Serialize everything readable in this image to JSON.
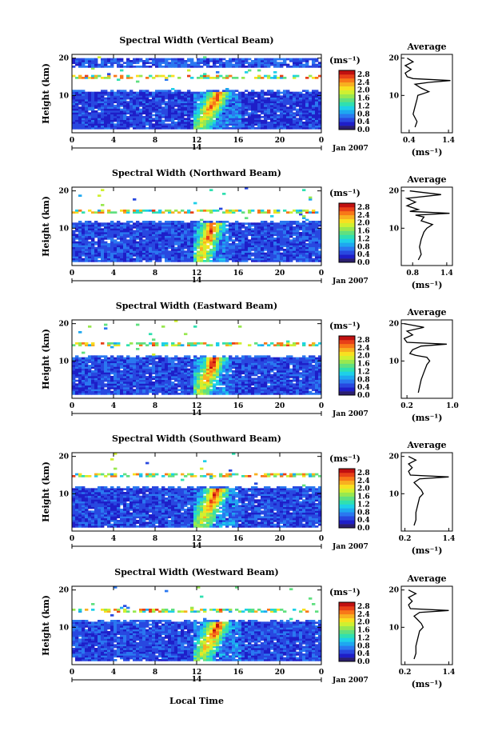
{
  "figure": {
    "x_axis_label": "Local Time",
    "date_label": "Jan 2007",
    "day_label": "14",
    "y_axis_label": "Height (km)",
    "colorbar_unit": "(ms⁻¹)",
    "avg_title": "Average",
    "avg_unit": "(ms⁻¹)"
  },
  "colors": {
    "colormap": [
      "#2b1e6e",
      "#1e1ec8",
      "#2848e0",
      "#2a78f0",
      "#1ea8f0",
      "#1ed0e8",
      "#30e0b0",
      "#60e080",
      "#98e850",
      "#d0f030",
      "#f8e020",
      "#f8b020",
      "#f87818",
      "#e84018",
      "#c01010"
    ]
  },
  "chart_data": [
    {
      "type": "heatmap",
      "title": "Spectral Width (Vertical Beam)",
      "x_ticks": [
        "0",
        "4",
        "8",
        "12",
        "16",
        "20",
        "0"
      ],
      "xlim": [
        0,
        24
      ],
      "y_ticks": [
        "10",
        "20"
      ],
      "ylim": [
        0,
        21
      ],
      "colorbar_ticks": [
        "0.0",
        "0.4",
        "0.8",
        "1.2",
        "1.6",
        "2.0",
        "2.4",
        "2.8"
      ],
      "colorbar_range": [
        0,
        3.0
      ],
      "features": {
        "tropopause_km": 13,
        "lower_top_km": 11,
        "upper_band_km": [
          17.5,
          20
        ],
        "upper_band": true,
        "upper_streak_km": 15,
        "convective_lt": [
          11.8,
          16.2
        ],
        "background": 0.45
      },
      "average": {
        "title": "Average",
        "x_ticks": [
          "0.4",
          "1.4"
        ],
        "xlim": [
          0.2,
          1.5
        ],
        "y_ticks": [
          "10",
          "20"
        ],
        "profile": [
          [
            1.5,
            0.55
          ],
          [
            3,
            0.6
          ],
          [
            5,
            0.5
          ],
          [
            7,
            0.55
          ],
          [
            9,
            0.6
          ],
          [
            10,
            0.62
          ],
          [
            11,
            0.9
          ],
          [
            12,
            0.7
          ],
          [
            13,
            0.55
          ],
          [
            13.5,
            0.9
          ],
          [
            14,
            1.45
          ],
          [
            14.5,
            0.5
          ],
          [
            15,
            0.35
          ],
          [
            16,
            0.3
          ],
          [
            17,
            0.45
          ],
          [
            18,
            0.3
          ],
          [
            19,
            0.5
          ],
          [
            20,
            0.35
          ]
        ]
      }
    },
    {
      "type": "heatmap",
      "title": "Spectral Width (Northward Beam)",
      "x_ticks": [
        "0",
        "4",
        "8",
        "12",
        "16",
        "20",
        "0"
      ],
      "xlim": [
        0,
        24
      ],
      "y_ticks": [
        "10",
        "20"
      ],
      "ylim": [
        0,
        21
      ],
      "colorbar_ticks": [
        "0.0",
        "0.4",
        "0.8",
        "1.2",
        "1.6",
        "2.0",
        "2.4",
        "2.8"
      ],
      "colorbar_range": [
        0,
        3.0
      ],
      "features": {
        "tropopause_km": 14.5,
        "lower_top_km": 11.5,
        "upper_band": false,
        "upper_streak_km": 14.5,
        "convective_lt": [
          11.8,
          15.2
        ],
        "background": 0.5
      },
      "average": {
        "title": "Average",
        "x_ticks": [
          "0.8",
          "1.4"
        ],
        "xlim": [
          0.6,
          1.5
        ],
        "y_ticks": [
          "10",
          "20"
        ],
        "profile": [
          [
            1.5,
            0.9
          ],
          [
            3,
            0.95
          ],
          [
            5,
            0.92
          ],
          [
            7,
            0.95
          ],
          [
            9,
            1.0
          ],
          [
            10,
            1.05
          ],
          [
            11,
            1.15
          ],
          [
            12,
            0.95
          ],
          [
            13,
            1.0
          ],
          [
            13.5,
            0.85
          ],
          [
            14,
            1.45
          ],
          [
            14.5,
            0.75
          ],
          [
            15,
            0.9
          ],
          [
            16,
            0.7
          ],
          [
            17,
            0.85
          ],
          [
            18,
            0.7
          ],
          [
            19,
            1.3
          ],
          [
            20,
            0.75
          ]
        ]
      }
    },
    {
      "type": "heatmap",
      "title": "Spectral Width (Eastward Beam)",
      "x_ticks": [
        "0",
        "4",
        "8",
        "12",
        "16",
        "20",
        "0"
      ],
      "xlim": [
        0,
        24
      ],
      "y_ticks": [
        "10",
        "20"
      ],
      "ylim": [
        0,
        21
      ],
      "colorbar_ticks": [
        "0.0",
        "0.4",
        "0.8",
        "1.2",
        "1.6",
        "2.0",
        "2.4",
        "2.8"
      ],
      "colorbar_range": [
        0,
        3.0
      ],
      "features": {
        "tropopause_km": 14.5,
        "lower_top_km": 11,
        "upper_band": false,
        "upper_streak_km": 14.5,
        "convective_lt": [
          11.8,
          15.5
        ],
        "background": 0.5
      },
      "average": {
        "title": "Average",
        "x_ticks": [
          "0.2",
          "1.0"
        ],
        "xlim": [
          0.1,
          1.0
        ],
        "y_ticks": [
          "10",
          "20"
        ],
        "profile": [
          [
            1.5,
            0.4
          ],
          [
            3,
            0.42
          ],
          [
            5,
            0.45
          ],
          [
            7,
            0.5
          ],
          [
            9,
            0.55
          ],
          [
            10,
            0.6
          ],
          [
            11,
            0.55
          ],
          [
            11.5,
            0.35
          ],
          [
            12,
            0.25
          ],
          [
            13,
            0.3
          ],
          [
            14,
            0.45
          ],
          [
            14.5,
            0.9
          ],
          [
            15,
            0.2
          ],
          [
            16,
            0.15
          ],
          [
            17,
            0.3
          ],
          [
            18,
            0.2
          ],
          [
            19,
            0.5
          ],
          [
            20,
            0.15
          ]
        ]
      }
    },
    {
      "type": "heatmap",
      "title": "Spectral Width (Southward Beam)",
      "x_ticks": [
        "0",
        "4",
        "8",
        "12",
        "16",
        "20",
        "0"
      ],
      "xlim": [
        0,
        24
      ],
      "y_ticks": [
        "10",
        "20"
      ],
      "ylim": [
        0,
        21
      ],
      "colorbar_ticks": [
        "0.0",
        "0.4",
        "0.8",
        "1.2",
        "1.6",
        "2.0",
        "2.4",
        "2.8"
      ],
      "colorbar_range": [
        0,
        3.0
      ],
      "features": {
        "tropopause_km": 14.5,
        "lower_top_km": 11.5,
        "upper_band": false,
        "upper_streak_km": 14.8,
        "convective_lt": [
          11.8,
          16.0
        ],
        "background": 0.5
      },
      "average": {
        "title": "Average",
        "x_ticks": [
          "0.2",
          "1.4"
        ],
        "xlim": [
          0.1,
          1.5
        ],
        "y_ticks": [
          "10",
          "20"
        ],
        "profile": [
          [
            1.5,
            0.45
          ],
          [
            3,
            0.5
          ],
          [
            5,
            0.5
          ],
          [
            7,
            0.55
          ],
          [
            9,
            0.6
          ],
          [
            10,
            0.7
          ],
          [
            11,
            0.65
          ],
          [
            12,
            0.55
          ],
          [
            13,
            0.45
          ],
          [
            14,
            0.6
          ],
          [
            14.5,
            1.4
          ],
          [
            15,
            0.35
          ],
          [
            16,
            0.3
          ],
          [
            17,
            0.4
          ],
          [
            18,
            0.3
          ],
          [
            19,
            0.5
          ],
          [
            20,
            0.3
          ]
        ]
      }
    },
    {
      "type": "heatmap",
      "title": "Spectral Width (Westward Beam)",
      "x_ticks": [
        "0",
        "4",
        "8",
        "12",
        "16",
        "20",
        "0"
      ],
      "xlim": [
        0,
        24
      ],
      "y_ticks": [
        "10",
        "20"
      ],
      "ylim": [
        0,
        21
      ],
      "colorbar_ticks": [
        "0.0",
        "0.4",
        "0.8",
        "1.2",
        "1.6",
        "2.0",
        "2.4",
        "2.8"
      ],
      "colorbar_range": [
        0,
        3.0
      ],
      "features": {
        "tropopause_km": 14.5,
        "lower_top_km": 11.5,
        "upper_band": false,
        "upper_streak_km": 14.5,
        "convective_lt": [
          11.8,
          16.2
        ],
        "background": 0.5
      },
      "average": {
        "title": "Average",
        "x_ticks": [
          "0.2",
          "1.4"
        ],
        "xlim": [
          0.1,
          1.5
        ],
        "y_ticks": [
          "10",
          "20"
        ],
        "profile": [
          [
            1.5,
            0.45
          ],
          [
            3,
            0.5
          ],
          [
            5,
            0.5
          ],
          [
            7,
            0.55
          ],
          [
            9,
            0.6
          ],
          [
            10,
            0.7
          ],
          [
            11,
            0.65
          ],
          [
            12,
            0.55
          ],
          [
            13,
            0.45
          ],
          [
            14,
            0.6
          ],
          [
            14.5,
            1.4
          ],
          [
            15,
            0.35
          ],
          [
            16,
            0.3
          ],
          [
            17,
            0.4
          ],
          [
            18,
            0.3
          ],
          [
            19,
            0.5
          ],
          [
            20,
            0.3
          ]
        ]
      }
    }
  ]
}
